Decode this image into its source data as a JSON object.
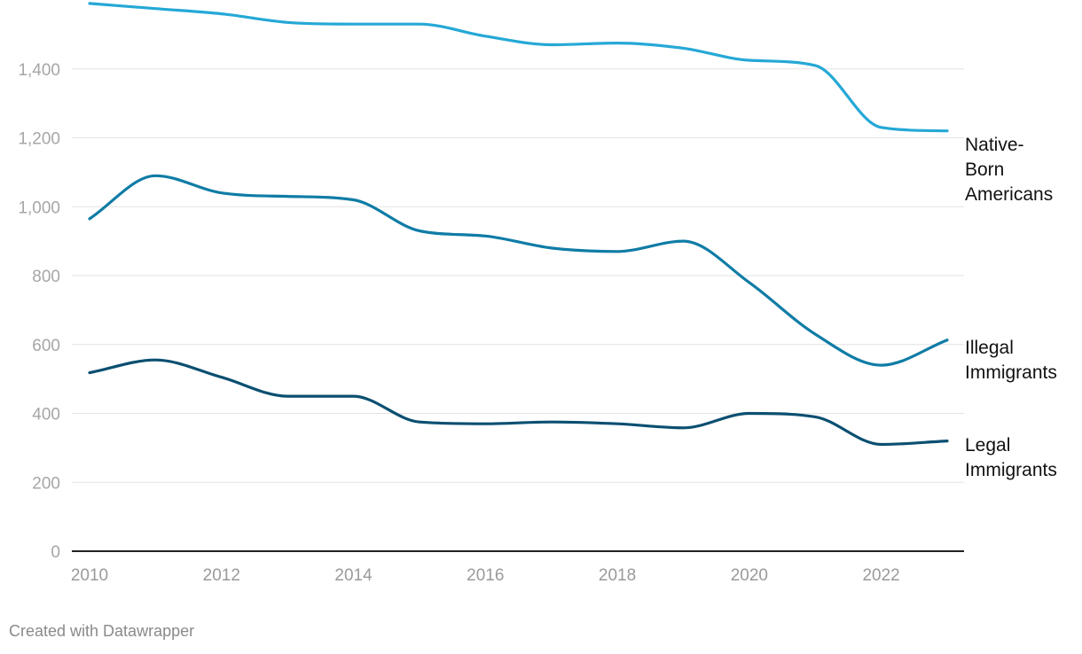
{
  "chart_data": {
    "type": "line",
    "title": "",
    "xlabel": "",
    "ylabel": "",
    "x": [
      2010,
      2011,
      2012,
      2013,
      2014,
      2015,
      2016,
      2017,
      2018,
      2019,
      2020,
      2021,
      2022,
      2023
    ],
    "xlim": [
      2010,
      2023
    ],
    "ylim": [
      0,
      1600
    ],
    "y_ticks": [
      0,
      200,
      400,
      600,
      800,
      1000,
      1200,
      1400
    ],
    "y_tick_labels": [
      "0",
      "200",
      "400",
      "600",
      "800",
      "1,000",
      "1,200",
      "1,400"
    ],
    "x_ticks": [
      2010,
      2012,
      2014,
      2016,
      2018,
      2020,
      2022
    ],
    "x_tick_labels": [
      "2010",
      "2012",
      "2014",
      "2016",
      "2018",
      "2020",
      "2022"
    ],
    "grid": true,
    "legend": "direct labels at line ends",
    "series": [
      {
        "name": "Native-Born Americans",
        "label_lines": [
          "Native-",
          "Born",
          "Americans"
        ],
        "color": "#25a8d6",
        "values": [
          1590,
          1575,
          1560,
          1535,
          1530,
          1530,
          1495,
          1470,
          1475,
          1460,
          1425,
          1410,
          1230,
          1220
        ]
      },
      {
        "name": "Illegal Immigrants",
        "label_lines": [
          "Illegal",
          "Immigrants"
        ],
        "color": "#0f7ca6",
        "values": [
          965,
          1090,
          1040,
          1030,
          1020,
          930,
          915,
          880,
          870,
          900,
          780,
          630,
          540,
          613
        ]
      },
      {
        "name": "Legal Immigrants",
        "label_lines": [
          "Legal",
          "Immigrants"
        ],
        "color": "#0b4f71",
        "values": [
          518,
          555,
          505,
          450,
          450,
          375,
          370,
          375,
          370,
          358,
          400,
          390,
          310,
          320
        ]
      }
    ]
  },
  "credit": "Created with Datawrapper"
}
